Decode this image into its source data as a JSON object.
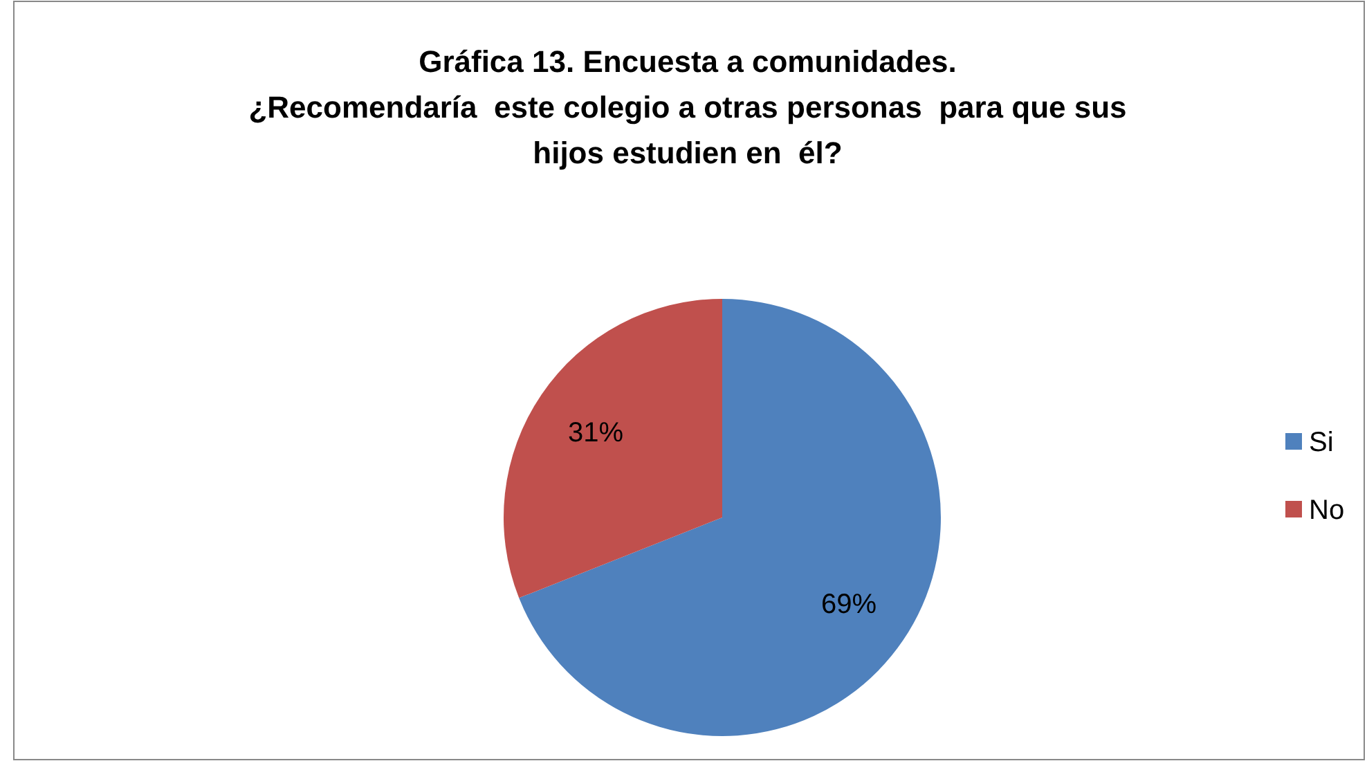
{
  "chart_data": {
    "type": "pie",
    "title": "Gráfica 13. Encuesta a comunidades.\n¿Recomendaría  este colegio a otras personas  para que sus hijos estudien en  él?",
    "categories": [
      "Si",
      "No"
    ],
    "values": [
      69,
      31
    ],
    "colors": [
      "#4f81bd",
      "#c0504d"
    ],
    "value_labels": [
      "69%",
      "31%"
    ],
    "legend": "right"
  }
}
